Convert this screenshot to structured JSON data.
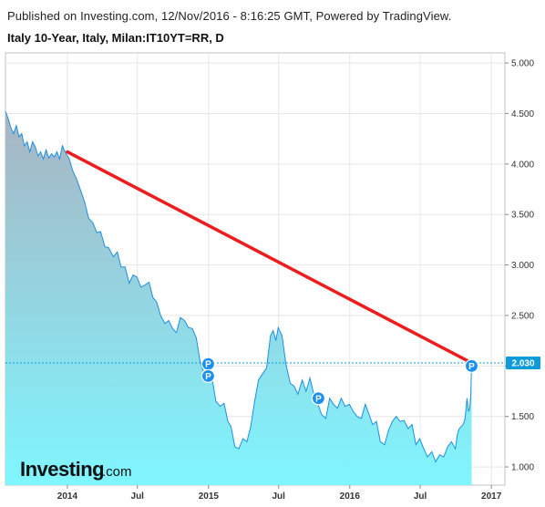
{
  "header": {
    "published": "Published on Investing.com, 12/Nov/2016 - 8:16:25 GMT, Powered by TradingView.",
    "title": "Italy 10-Year, Italy, Milan:IT10YT=RR, D"
  },
  "logo": {
    "brand": "Investing",
    "suffix": ".com"
  },
  "colors": {
    "line": "#1e8fe1",
    "fill_top": "#a9b4c2",
    "fill_bottom": "#7ff6ff",
    "trendline": "#ee1c1c",
    "last_label": "#0e9bd8",
    "marker": "#1a8ff0"
  },
  "chart_data": {
    "type": "area",
    "title": "Italy 10-Year, Italy, Milan:IT10YT=RR, D",
    "x_tick_labels": [
      "2014",
      "Jul",
      "2015",
      "Jul",
      "2016",
      "Jul",
      "2017"
    ],
    "x_tick_dates": [
      "2014-01-01",
      "2014-07-01",
      "2015-01-01",
      "2015-07-01",
      "2016-01-01",
      "2016-07-01",
      "2017-01-01"
    ],
    "y_tick_labels": [
      "1.000",
      "1.500",
      "2.000",
      "2.500",
      "3.000",
      "3.500",
      "4.000",
      "4.500",
      "5.000"
    ],
    "ylim": [
      0.82,
      5.1
    ],
    "xlim": [
      "2013-07-25",
      "2017-02-05"
    ],
    "grid": true,
    "last_value_label": "2.030",
    "last_value": 2.03,
    "series": [
      {
        "points": [
          [
            "2013-07-25",
            4.52
          ],
          [
            "2013-08-01",
            4.45
          ],
          [
            "2013-08-08",
            4.36
          ],
          [
            "2013-08-15",
            4.3
          ],
          [
            "2013-08-22",
            4.38
          ],
          [
            "2013-08-29",
            4.27
          ],
          [
            "2013-09-05",
            4.3
          ],
          [
            "2013-09-12",
            4.18
          ],
          [
            "2013-09-19",
            4.22
          ],
          [
            "2013-09-26",
            4.12
          ],
          [
            "2013-10-03",
            4.22
          ],
          [
            "2013-10-10",
            4.17
          ],
          [
            "2013-10-17",
            4.08
          ],
          [
            "2013-10-24",
            4.12
          ],
          [
            "2013-10-31",
            4.05
          ],
          [
            "2013-11-07",
            4.14
          ],
          [
            "2013-11-14",
            4.06
          ],
          [
            "2013-11-21",
            4.1
          ],
          [
            "2013-11-28",
            4.07
          ],
          [
            "2013-12-05",
            4.12
          ],
          [
            "2013-12-12",
            4.05
          ],
          [
            "2013-12-19",
            4.18
          ],
          [
            "2013-12-26",
            4.12
          ],
          [
            "2014-01-06",
            4.05
          ],
          [
            "2014-01-15",
            3.93
          ],
          [
            "2014-01-25",
            3.85
          ],
          [
            "2014-02-05",
            3.73
          ],
          [
            "2014-02-15",
            3.62
          ],
          [
            "2014-02-25",
            3.46
          ],
          [
            "2014-03-08",
            3.42
          ],
          [
            "2014-03-18",
            3.32
          ],
          [
            "2014-03-28",
            3.33
          ],
          [
            "2014-04-08",
            3.18
          ],
          [
            "2014-04-18",
            3.17
          ],
          [
            "2014-04-30",
            3.08
          ],
          [
            "2014-05-10",
            3.13
          ],
          [
            "2014-05-20",
            2.98
          ],
          [
            "2014-05-30",
            2.98
          ],
          [
            "2014-06-10",
            2.82
          ],
          [
            "2014-06-20",
            2.9
          ],
          [
            "2014-06-30",
            2.88
          ],
          [
            "2014-07-10",
            2.78
          ],
          [
            "2014-07-20",
            2.8
          ],
          [
            "2014-07-31",
            2.83
          ],
          [
            "2014-08-10",
            2.68
          ],
          [
            "2014-08-20",
            2.63
          ],
          [
            "2014-08-30",
            2.5
          ],
          [
            "2014-09-10",
            2.42
          ],
          [
            "2014-09-20",
            2.45
          ],
          [
            "2014-09-30",
            2.37
          ],
          [
            "2014-10-10",
            2.33
          ],
          [
            "2014-10-20",
            2.48
          ],
          [
            "2014-10-31",
            2.45
          ],
          [
            "2014-11-10",
            2.38
          ],
          [
            "2014-11-20",
            2.37
          ],
          [
            "2014-11-30",
            2.28
          ],
          [
            "2014-12-10",
            2.05
          ],
          [
            "2014-12-20",
            1.93
          ],
          [
            "2014-12-31",
            1.88
          ],
          [
            "2015-01-10",
            1.88
          ],
          [
            "2015-01-20",
            1.65
          ],
          [
            "2015-01-31",
            1.6
          ],
          [
            "2015-02-10",
            1.63
          ],
          [
            "2015-02-20",
            1.45
          ],
          [
            "2015-02-28",
            1.4
          ],
          [
            "2015-03-10",
            1.2
          ],
          [
            "2015-03-20",
            1.18
          ],
          [
            "2015-03-31",
            1.28
          ],
          [
            "2015-04-10",
            1.25
          ],
          [
            "2015-04-20",
            1.4
          ],
          [
            "2015-04-30",
            1.65
          ],
          [
            "2015-05-10",
            1.86
          ],
          [
            "2015-05-20",
            1.92
          ],
          [
            "2015-05-31",
            1.98
          ],
          [
            "2015-06-10",
            2.3
          ],
          [
            "2015-06-17",
            2.35
          ],
          [
            "2015-06-24",
            2.25
          ],
          [
            "2015-06-30",
            2.38
          ],
          [
            "2015-07-10",
            2.3
          ],
          [
            "2015-07-20",
            2.02
          ],
          [
            "2015-07-31",
            1.83
          ],
          [
            "2015-08-10",
            1.8
          ],
          [
            "2015-08-20",
            1.72
          ],
          [
            "2015-08-31",
            1.86
          ],
          [
            "2015-09-10",
            1.75
          ],
          [
            "2015-09-20",
            1.88
          ],
          [
            "2015-09-30",
            1.72
          ],
          [
            "2015-10-10",
            1.63
          ],
          [
            "2015-10-20",
            1.52
          ],
          [
            "2015-10-31",
            1.48
          ],
          [
            "2015-11-10",
            1.68
          ],
          [
            "2015-11-20",
            1.62
          ],
          [
            "2015-11-30",
            1.58
          ],
          [
            "2015-12-10",
            1.68
          ],
          [
            "2015-12-20",
            1.6
          ],
          [
            "2015-12-31",
            1.62
          ],
          [
            "2016-01-10",
            1.55
          ],
          [
            "2016-01-20",
            1.5
          ],
          [
            "2016-01-31",
            1.48
          ],
          [
            "2016-02-10",
            1.62
          ],
          [
            "2016-02-20",
            1.52
          ],
          [
            "2016-02-29",
            1.42
          ],
          [
            "2016-03-10",
            1.45
          ],
          [
            "2016-03-20",
            1.25
          ],
          [
            "2016-03-31",
            1.22
          ],
          [
            "2016-04-10",
            1.36
          ],
          [
            "2016-04-20",
            1.45
          ],
          [
            "2016-04-30",
            1.5
          ],
          [
            "2016-05-10",
            1.45
          ],
          [
            "2016-05-20",
            1.46
          ],
          [
            "2016-05-31",
            1.38
          ],
          [
            "2016-06-10",
            1.42
          ],
          [
            "2016-06-20",
            1.22
          ],
          [
            "2016-06-30",
            1.28
          ],
          [
            "2016-07-10",
            1.18
          ],
          [
            "2016-07-20",
            1.1
          ],
          [
            "2016-07-31",
            1.15
          ],
          [
            "2016-08-10",
            1.05
          ],
          [
            "2016-08-20",
            1.12
          ],
          [
            "2016-08-31",
            1.1
          ],
          [
            "2016-09-10",
            1.2
          ],
          [
            "2016-09-20",
            1.25
          ],
          [
            "2016-09-30",
            1.18
          ],
          [
            "2016-10-05",
            1.32
          ],
          [
            "2016-10-10",
            1.38
          ],
          [
            "2016-10-15",
            1.4
          ],
          [
            "2016-10-20",
            1.42
          ],
          [
            "2016-10-25",
            1.48
          ],
          [
            "2016-10-30",
            1.68
          ],
          [
            "2016-11-03",
            1.55
          ],
          [
            "2016-11-06",
            1.58
          ],
          [
            "2016-11-09",
            1.72
          ],
          [
            "2016-11-11",
            2.03
          ]
        ]
      }
    ],
    "trendline": {
      "from": [
        "2014-01-01",
        4.12
      ],
      "to": [
        "2016-11-11",
        2.03
      ]
    },
    "event_markers": [
      {
        "label": "P",
        "date": "2014-12-31",
        "value": 2.02
      },
      {
        "label": "P",
        "date": "2014-12-31",
        "value": 1.9
      },
      {
        "label": "P",
        "date": "2015-10-12",
        "value": 1.68
      },
      {
        "label": "P",
        "date": "2016-11-11",
        "value": 2.0
      }
    ]
  }
}
